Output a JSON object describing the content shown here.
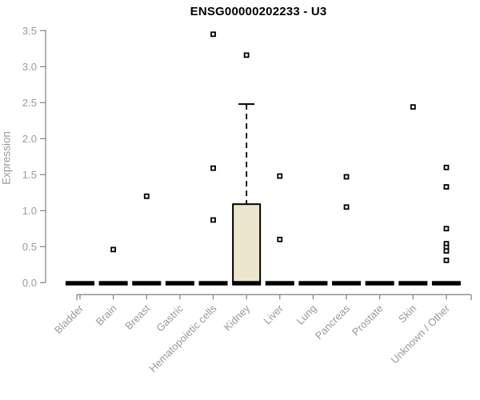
{
  "chart_data": {
    "type": "boxplot",
    "title": "ENSG00000202233 - U3",
    "ylabel": "Expression",
    "xlabel": "",
    "ylim": [
      0,
      3.5
    ],
    "grid": false,
    "legend": null,
    "yticks": [
      "0.0",
      "0.5",
      "1.0",
      "1.5",
      "2.0",
      "2.5",
      "3.0",
      "3.5"
    ],
    "categories": [
      "Bladder",
      "Brain",
      "Breast",
      "Gastric",
      "Hematopoietic cells",
      "Kidney",
      "Liver",
      "Lung",
      "Pancreas",
      "Prostate",
      "Skin",
      "Unknown / Other"
    ],
    "series": [
      {
        "category": "Bladder",
        "box": {
          "whisker_low": 0,
          "q1": 0,
          "median": 0,
          "q3": 0,
          "whisker_high": 0
        },
        "points": []
      },
      {
        "category": "Brain",
        "box": {
          "whisker_low": 0,
          "q1": 0,
          "median": 0,
          "q3": 0,
          "whisker_high": 0
        },
        "points": [
          0.46
        ]
      },
      {
        "category": "Breast",
        "box": {
          "whisker_low": 0,
          "q1": 0,
          "median": 0,
          "q3": 0,
          "whisker_high": 0
        },
        "points": [
          1.2
        ]
      },
      {
        "category": "Gastric",
        "box": {
          "whisker_low": 0,
          "q1": 0,
          "median": 0,
          "q3": 0,
          "whisker_high": 0
        },
        "points": []
      },
      {
        "category": "Hematopoietic cells",
        "box": {
          "whisker_low": 0,
          "q1": 0,
          "median": 0,
          "q3": 0,
          "whisker_high": 0
        },
        "points": [
          3.45,
          1.59,
          0.87
        ]
      },
      {
        "category": "Kidney",
        "box": {
          "whisker_low": 0,
          "q1": 0,
          "median": 0,
          "q3": 1.09,
          "whisker_high": 2.48
        },
        "points": [
          3.16
        ]
      },
      {
        "category": "Liver",
        "box": {
          "whisker_low": 0,
          "q1": 0,
          "median": 0,
          "q3": 0,
          "whisker_high": 0
        },
        "points": [
          1.48,
          0.6
        ]
      },
      {
        "category": "Lung",
        "box": {
          "whisker_low": 0,
          "q1": 0,
          "median": 0,
          "q3": 0,
          "whisker_high": 0
        },
        "points": []
      },
      {
        "category": "Pancreas",
        "box": {
          "whisker_low": 0,
          "q1": 0,
          "median": 0,
          "q3": 0,
          "whisker_high": 0
        },
        "points": [
          1.47,
          1.05
        ]
      },
      {
        "category": "Prostate",
        "box": {
          "whisker_low": 0,
          "q1": 0,
          "median": 0,
          "q3": 0,
          "whisker_high": 0
        },
        "points": []
      },
      {
        "category": "Skin",
        "box": {
          "whisker_low": 0,
          "q1": 0,
          "median": 0,
          "q3": 0,
          "whisker_high": 0
        },
        "points": [
          2.44
        ]
      },
      {
        "category": "Unknown / Other",
        "box": {
          "whisker_low": 0,
          "q1": 0,
          "median": 0,
          "q3": 0,
          "whisker_high": 0
        },
        "points": [
          1.6,
          1.33,
          0.75,
          0.54,
          0.49,
          0.44,
          0.31
        ]
      }
    ],
    "colors": {
      "box_fill": "#ece6cc",
      "box_border": "#000000",
      "point": "#000000",
      "median": "#000000",
      "axis": "#8a8a8a",
      "tick_text": "#9a9a9a",
      "title": "#000000",
      "background": "#ffffff"
    }
  }
}
